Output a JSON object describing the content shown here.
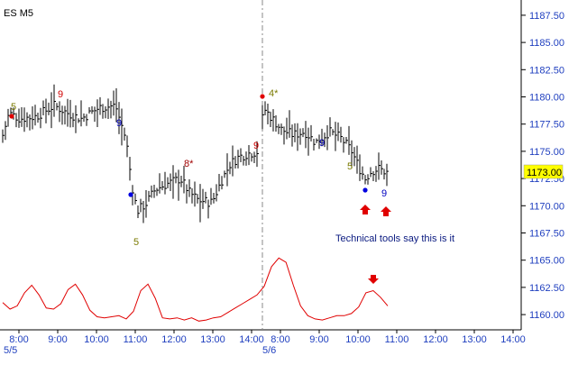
{
  "chart_data": {
    "type": "line",
    "title": "ES M5",
    "current_price": "1173.00",
    "y_ticks": [
      "1187.50",
      "1185.00",
      "1182.50",
      "1180.00",
      "1177.50",
      "1175.00",
      "1172.50",
      "1170.00",
      "1167.50",
      "1165.00",
      "1162.50",
      "1160.00"
    ],
    "y_range": [
      1158.6,
      1188.9
    ],
    "x_ticks": [
      "8:00",
      "9:00",
      "10:00",
      "11:00",
      "12:00",
      "13:00",
      "14:00",
      "8:00",
      "9:00",
      "10:00",
      "11:00",
      "12:00",
      "13:00",
      "14:00"
    ],
    "date_labels": [
      "5/5",
      "5/6"
    ],
    "annotation": "Technical tools say this is it",
    "count_labels": [
      {
        "text": "5",
        "color": "olive"
      },
      {
        "text": "9",
        "color": "red"
      },
      {
        "text": "9",
        "color": "blue"
      },
      {
        "text": "5",
        "color": "olive"
      },
      {
        "text": "8*",
        "color": "red"
      },
      {
        "text": "9",
        "color": "red"
      },
      {
        "text": "4*",
        "color": "olive"
      },
      {
        "text": "9",
        "color": "blue"
      },
      {
        "text": "5",
        "color": "olive"
      },
      {
        "text": "9",
        "color": "blue"
      }
    ],
    "oscillator_values": [
      1161.1,
      1160.5,
      1160.8,
      1162.0,
      1162.7,
      1161.8,
      1160.6,
      1160.5,
      1161.0,
      1162.3,
      1162.8,
      1161.8,
      1160.4,
      1159.8,
      1159.7,
      1159.8,
      1159.9,
      1159.6,
      1160.3,
      1162.2,
      1162.8,
      1161.5,
      1159.7,
      1159.6,
      1159.7,
      1159.5,
      1159.7,
      1159.4,
      1159.5,
      1159.7,
      1159.8,
      1160.2,
      1160.6,
      1161.0,
      1161.4,
      1161.8,
      1162.6,
      1164.4,
      1165.2,
      1164.8,
      1162.7,
      1160.8,
      1159.9,
      1159.6,
      1159.5,
      1159.7,
      1159.9,
      1159.9,
      1160.1,
      1160.7,
      1162.0,
      1162.2,
      1161.6,
      1160.8
    ],
    "colors": {
      "bars": "#000000",
      "oscillator": "#e00000",
      "axis_text": "#1f3fbf",
      "price_tag": "#ffff00",
      "marker_blue": "#0000e0",
      "marker_red": "#e00000",
      "label_olive": "#7a7a00"
    }
  }
}
